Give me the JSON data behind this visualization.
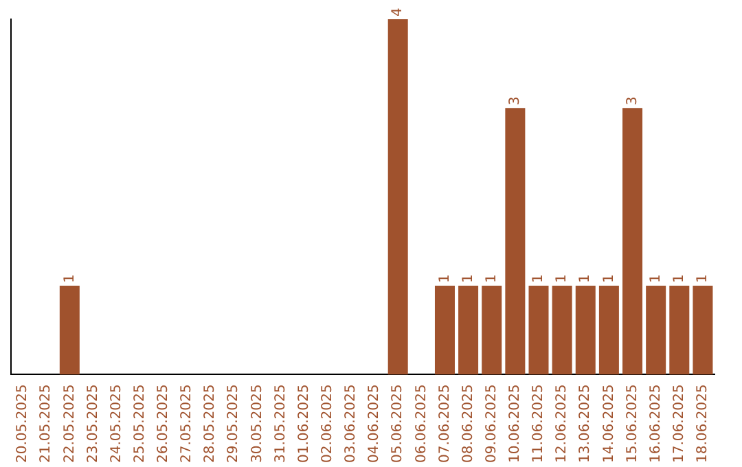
{
  "chart_data": {
    "type": "bar",
    "categories": [
      "20.05.2025",
      "21.05.2025",
      "22.05.2025",
      "23.05.2025",
      "24.05.2025",
      "25.05.2025",
      "26.05.2025",
      "27.05.2025",
      "28.05.2025",
      "29.05.2025",
      "30.05.2025",
      "31.05.2025",
      "01.06.2025",
      "02.06.2025",
      "03.06.2025",
      "04.06.2025",
      "05.06.2025",
      "06.06.2025",
      "07.06.2025",
      "08.06.2025",
      "09.06.2025",
      "10.06.2025",
      "11.06.2025",
      "12.06.2025",
      "13.06.2025",
      "14.06.2025",
      "15.06.2025",
      "16.06.2025",
      "17.06.2025",
      "18.06.2025"
    ],
    "values": [
      0,
      0,
      1,
      0,
      0,
      0,
      0,
      0,
      0,
      0,
      0,
      0,
      0,
      0,
      0,
      0,
      4,
      0,
      1,
      1,
      1,
      3,
      1,
      1,
      1,
      1,
      3,
      1,
      1,
      1
    ],
    "value_labels": [
      null,
      null,
      "1",
      null,
      null,
      null,
      null,
      null,
      null,
      null,
      null,
      null,
      null,
      null,
      null,
      null,
      "4",
      null,
      "1",
      "1",
      "1",
      "3",
      "1",
      "1",
      "1",
      "1",
      "3",
      "1",
      "1",
      "1"
    ],
    "color": "#a0522d",
    "grid": false,
    "legend": false
  }
}
